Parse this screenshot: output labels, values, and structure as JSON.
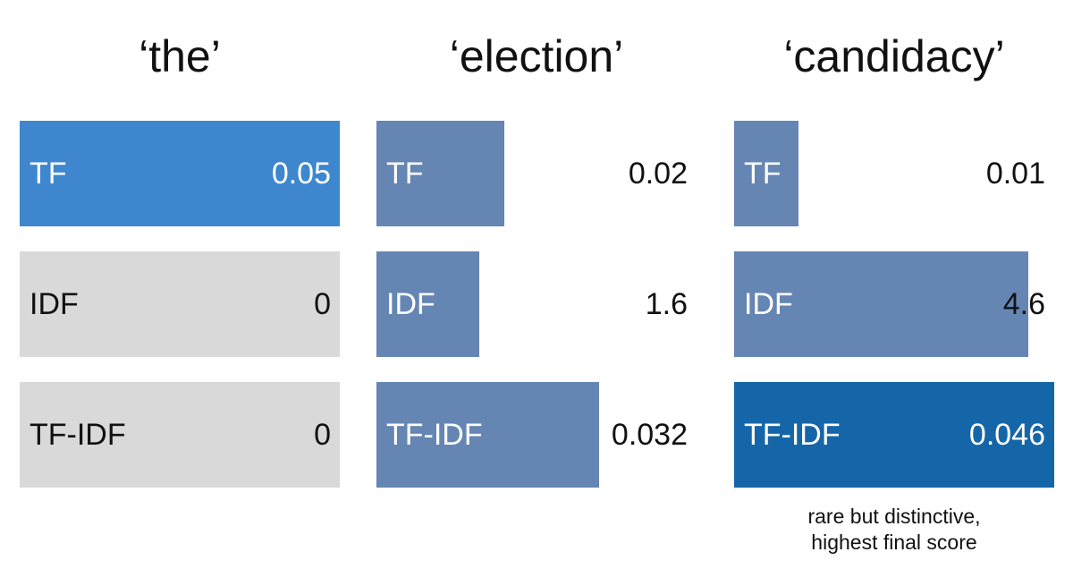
{
  "chart_data": {
    "type": "bar",
    "title": "",
    "panels": [
      {
        "title": "‘the’",
        "metrics": [
          {
            "label": "TF",
            "value": 0.05,
            "display": "0.05"
          },
          {
            "label": "IDF",
            "value": 0,
            "display": "0"
          },
          {
            "label": "TF-IDF",
            "value": 0,
            "display": "0"
          }
        ]
      },
      {
        "title": "‘election’",
        "metrics": [
          {
            "label": "TF",
            "value": 0.02,
            "display": "0.02"
          },
          {
            "label": "IDF",
            "value": 1.6,
            "display": "1.6"
          },
          {
            "label": "TF-IDF",
            "value": 0.032,
            "display": "0.032"
          }
        ]
      },
      {
        "title": "‘candidacy’",
        "metrics": [
          {
            "label": "TF",
            "value": 0.01,
            "display": "0.01"
          },
          {
            "label": "IDF",
            "value": 4.6,
            "display": "4.6"
          },
          {
            "label": "TF-IDF",
            "value": 0.046,
            "display": "0.046"
          }
        ],
        "annotation": "rare but distinctive,\nhighest final score"
      }
    ],
    "highlight": [
      {
        "panel": 0,
        "metric": 0
      },
      {
        "panel": 2,
        "metric": 2
      }
    ],
    "colors": {
      "bar": "#6586b3",
      "highlight_tf": "#3e87cf",
      "highlight_tfidf": "#1566a8",
      "zero": "#d9d9d9",
      "text_on_bar": "#ffffff",
      "text_dark": "#111111"
    }
  }
}
